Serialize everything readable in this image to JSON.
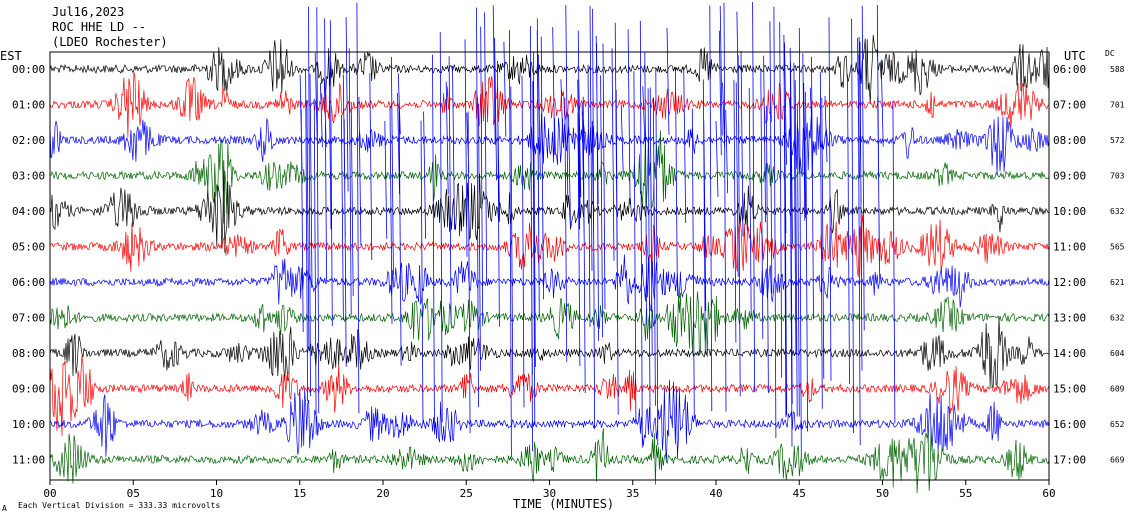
{
  "header": {
    "line1": "Jul16,2023",
    "line2": "ROC HHE LD --",
    "line3": "(LDEO Rochester)"
  },
  "chart_data": {
    "type": "line",
    "title": "Jul16,2023",
    "left_axis_label": "EST",
    "right_axis_label": "UTC",
    "dc_label": "DC",
    "xlabel": "TIME (MINUTES)",
    "xlim": [
      0,
      60
    ],
    "x_ticks": [
      "00",
      "05",
      "10",
      "15",
      "20",
      "25",
      "30",
      "35",
      "40",
      "45",
      "50",
      "55",
      "60"
    ],
    "rows": [
      {
        "est": "00:00",
        "utc": "06:00",
        "dc": "588",
        "color": "#000000"
      },
      {
        "est": "01:00",
        "utc": "07:00",
        "dc": "701",
        "color": "#ff0000"
      },
      {
        "est": "02:00",
        "utc": "08:00",
        "dc": "572",
        "color": "#0000ff"
      },
      {
        "est": "03:00",
        "utc": "09:00",
        "dc": "703",
        "color": "#006400"
      },
      {
        "est": "04:00",
        "utc": "10:00",
        "dc": "632",
        "color": "#000000"
      },
      {
        "est": "05:00",
        "utc": "11:00",
        "dc": "565",
        "color": "#ff0000"
      },
      {
        "est": "06:00",
        "utc": "12:00",
        "dc": "621",
        "color": "#0000ff"
      },
      {
        "est": "07:00",
        "utc": "13:00",
        "dc": "632",
        "color": "#006400"
      },
      {
        "est": "08:00",
        "utc": "14:00",
        "dc": "604",
        "color": "#000000"
      },
      {
        "est": "09:00",
        "utc": "15:00",
        "dc": "609",
        "color": "#ff0000"
      },
      {
        "est": "10:00",
        "utc": "16:00",
        "dc": "652",
        "color": "#0000ff"
      },
      {
        "est": "11:00",
        "utc": "17:00",
        "dc": "669",
        "color": "#006400"
      }
    ]
  },
  "footer": {
    "mark": "A",
    "scale_note": "Each Vertical Division = 333.33 microvolts"
  }
}
